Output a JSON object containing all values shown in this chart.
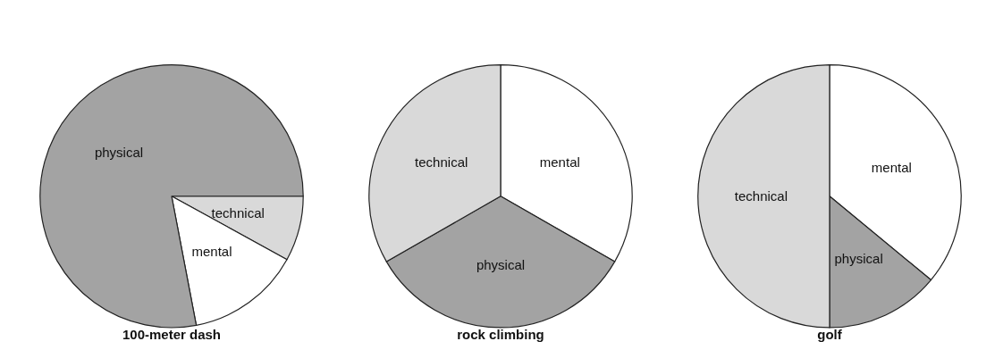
{
  "chart_data": [
    {
      "type": "pie",
      "title": "100-meter dash",
      "categories": [
        "technical",
        "mental",
        "physical"
      ],
      "values": [
        8,
        14,
        78
      ],
      "colors": [
        "#d9d9d9",
        "#ffffff",
        "#a3a3a3"
      ],
      "legend": false
    },
    {
      "type": "pie",
      "title": "rock climbing",
      "categories": [
        "mental",
        "physical",
        "technical"
      ],
      "values": [
        33.3,
        33.4,
        33.3
      ],
      "colors": [
        "#ffffff",
        "#a3a3a3",
        "#d9d9d9"
      ],
      "legend": false
    },
    {
      "type": "pie",
      "title": "golf",
      "categories": [
        "mental",
        "physical",
        "technical"
      ],
      "values": [
        36,
        14,
        50
      ],
      "colors": [
        "#ffffff",
        "#a3a3a3",
        "#d9d9d9"
      ],
      "legend": false
    }
  ]
}
